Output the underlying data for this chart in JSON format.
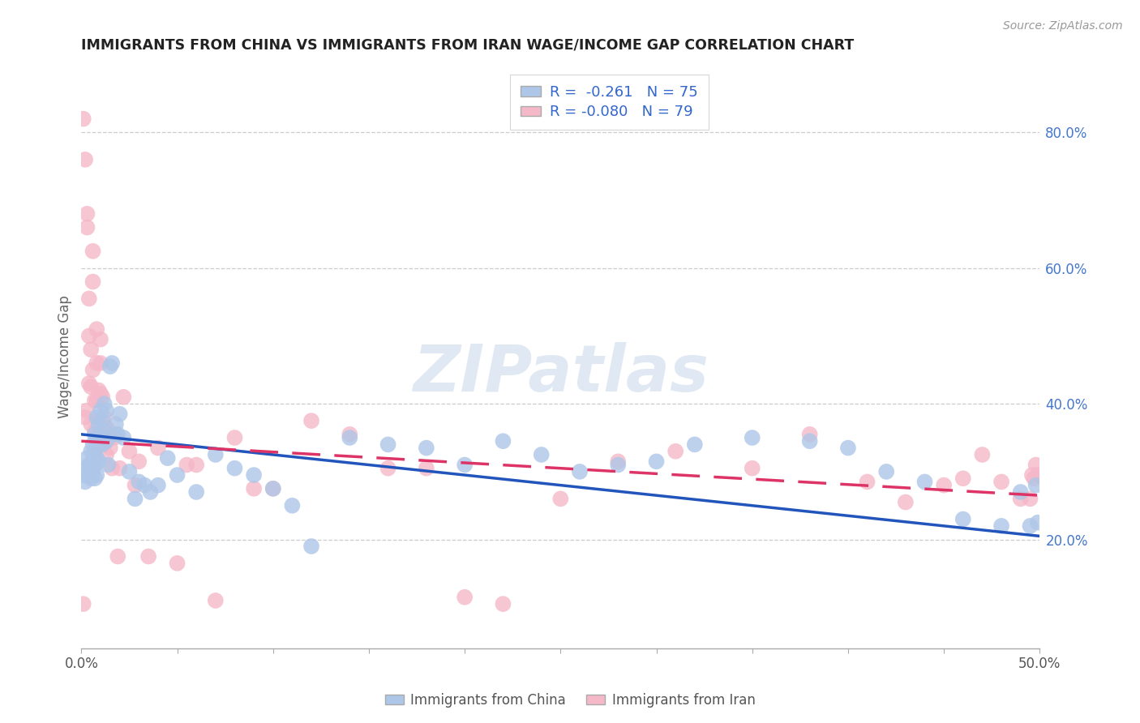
{
  "title": "IMMIGRANTS FROM CHINA VS IMMIGRANTS FROM IRAN WAGE/INCOME GAP CORRELATION CHART",
  "source": "Source: ZipAtlas.com",
  "ylabel": "Wage/Income Gap",
  "china_R": -0.261,
  "china_N": 75,
  "iran_R": -0.08,
  "iran_N": 79,
  "china_color": "#aec6e8",
  "iran_color": "#f5b8c8",
  "china_line_color": "#2255bb",
  "iran_line_color": "#dd3366",
  "watermark_text": "ZIPatlas",
  "right_ytick_values": [
    0.2,
    0.4,
    0.6,
    0.8
  ],
  "xlim": [
    0.0,
    0.5
  ],
  "ylim": [
    0.04,
    0.9
  ],
  "china_trend_x0": 0.0,
  "china_trend_y0": 0.355,
  "china_trend_x1": 0.5,
  "china_trend_y1": 0.205,
  "iran_trend_x0": 0.0,
  "iran_trend_y0": 0.345,
  "iran_trend_x1": 0.5,
  "iran_trend_y1": 0.265,
  "china_scatter_x": [
    0.001,
    0.002,
    0.003,
    0.003,
    0.004,
    0.004,
    0.005,
    0.005,
    0.005,
    0.006,
    0.006,
    0.006,
    0.007,
    0.007,
    0.007,
    0.007,
    0.008,
    0.008,
    0.008,
    0.008,
    0.009,
    0.009,
    0.009,
    0.01,
    0.01,
    0.011,
    0.011,
    0.012,
    0.012,
    0.013,
    0.013,
    0.014,
    0.015,
    0.016,
    0.017,
    0.018,
    0.019,
    0.02,
    0.022,
    0.025,
    0.028,
    0.03,
    0.033,
    0.036,
    0.04,
    0.045,
    0.05,
    0.06,
    0.07,
    0.08,
    0.09,
    0.1,
    0.11,
    0.12,
    0.14,
    0.16,
    0.18,
    0.2,
    0.22,
    0.24,
    0.26,
    0.28,
    0.3,
    0.32,
    0.35,
    0.38,
    0.4,
    0.42,
    0.44,
    0.46,
    0.48,
    0.49,
    0.495,
    0.498,
    0.499
  ],
  "china_scatter_y": [
    0.295,
    0.285,
    0.32,
    0.305,
    0.31,
    0.295,
    0.33,
    0.31,
    0.29,
    0.34,
    0.315,
    0.3,
    0.355,
    0.33,
    0.31,
    0.29,
    0.38,
    0.35,
    0.32,
    0.295,
    0.37,
    0.34,
    0.315,
    0.39,
    0.355,
    0.375,
    0.34,
    0.4,
    0.36,
    0.39,
    0.345,
    0.31,
    0.455,
    0.46,
    0.355,
    0.37,
    0.355,
    0.385,
    0.35,
    0.3,
    0.26,
    0.285,
    0.28,
    0.27,
    0.28,
    0.32,
    0.295,
    0.27,
    0.325,
    0.305,
    0.295,
    0.275,
    0.25,
    0.19,
    0.35,
    0.34,
    0.335,
    0.31,
    0.345,
    0.325,
    0.3,
    0.31,
    0.315,
    0.34,
    0.35,
    0.345,
    0.335,
    0.3,
    0.285,
    0.23,
    0.22,
    0.27,
    0.22,
    0.28,
    0.225
  ],
  "iran_scatter_x": [
    0.001,
    0.001,
    0.002,
    0.002,
    0.003,
    0.003,
    0.003,
    0.004,
    0.004,
    0.004,
    0.005,
    0.005,
    0.005,
    0.006,
    0.006,
    0.006,
    0.007,
    0.007,
    0.007,
    0.008,
    0.008,
    0.008,
    0.008,
    0.009,
    0.009,
    0.009,
    0.01,
    0.01,
    0.01,
    0.01,
    0.011,
    0.011,
    0.012,
    0.012,
    0.013,
    0.013,
    0.014,
    0.015,
    0.016,
    0.017,
    0.018,
    0.019,
    0.02,
    0.022,
    0.025,
    0.028,
    0.03,
    0.035,
    0.04,
    0.05,
    0.055,
    0.06,
    0.07,
    0.08,
    0.09,
    0.1,
    0.12,
    0.14,
    0.16,
    0.18,
    0.2,
    0.22,
    0.25,
    0.28,
    0.31,
    0.35,
    0.38,
    0.41,
    0.43,
    0.45,
    0.46,
    0.47,
    0.48,
    0.49,
    0.495,
    0.496,
    0.497,
    0.498,
    0.499
  ],
  "iran_scatter_y": [
    0.105,
    0.82,
    0.76,
    0.38,
    0.68,
    0.66,
    0.39,
    0.555,
    0.5,
    0.43,
    0.48,
    0.425,
    0.37,
    0.625,
    0.58,
    0.45,
    0.405,
    0.36,
    0.325,
    0.51,
    0.46,
    0.405,
    0.36,
    0.42,
    0.375,
    0.34,
    0.495,
    0.46,
    0.415,
    0.365,
    0.41,
    0.36,
    0.38,
    0.34,
    0.365,
    0.325,
    0.36,
    0.335,
    0.305,
    0.35,
    0.355,
    0.175,
    0.305,
    0.41,
    0.33,
    0.28,
    0.315,
    0.175,
    0.335,
    0.165,
    0.31,
    0.31,
    0.11,
    0.35,
    0.275,
    0.275,
    0.375,
    0.355,
    0.305,
    0.305,
    0.115,
    0.105,
    0.26,
    0.315,
    0.33,
    0.305,
    0.355,
    0.285,
    0.255,
    0.28,
    0.29,
    0.325,
    0.285,
    0.26,
    0.26,
    0.295,
    0.29,
    0.31,
    0.295
  ]
}
